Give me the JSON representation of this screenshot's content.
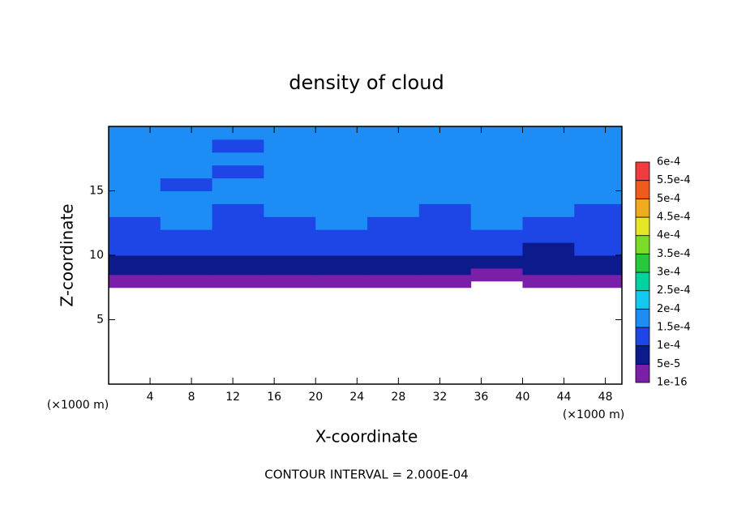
{
  "chart_data": {
    "type": "heatmap",
    "title": "density of cloud",
    "xlabel": "X-coordinate",
    "ylabel": "Z-coordinate",
    "x_unit": "(×1000 m)",
    "y_unit": "(×1000 m)",
    "annotation": "CONTOUR INTERVAL = 2.000E-04",
    "xlim": [
      0,
      49.6
    ],
    "ylim": [
      0,
      20
    ],
    "xticks": [
      4,
      8,
      12,
      16,
      20,
      24,
      28,
      32,
      36,
      40,
      44,
      48
    ],
    "yticks": [
      5,
      10,
      15
    ],
    "x_bins": [
      0,
      5,
      10,
      15,
      20,
      25,
      30,
      35,
      40,
      45,
      49.6
    ],
    "z_bins": [
      7.5,
      8,
      8.5,
      9,
      10,
      11,
      12,
      13,
      14,
      15,
      16,
      17,
      18,
      19,
      20
    ],
    "values": [
      [
        2e-05,
        2e-05,
        2e-05,
        2e-05,
        2e-05,
        2e-05,
        2e-05,
        null,
        2e-05,
        2e-05
      ],
      [
        3e-05,
        3e-05,
        3e-05,
        3e-05,
        3e-05,
        3e-05,
        3e-05,
        3e-05,
        3e-05,
        3e-05
      ],
      [
        6e-05,
        6e-05,
        6e-05,
        6e-05,
        6e-05,
        6e-05,
        6e-05,
        4e-05,
        6e-05,
        6e-05
      ],
      [
        8e-05,
        8e-05,
        8e-05,
        8e-05,
        8e-05,
        8e-05,
        8e-05,
        8e-05,
        8e-05,
        8e-05
      ],
      [
        0.00011,
        0.00011,
        0.00011,
        0.00011,
        0.00011,
        0.00011,
        0.00011,
        0.00011,
        9e-05,
        0.00011
      ],
      [
        0.00013,
        0.00013,
        0.00013,
        0.00013,
        0.00013,
        0.00013,
        0.00013,
        0.00013,
        0.00013,
        0.00013
      ],
      [
        0.00014,
        0.00016,
        0.00014,
        0.00014,
        0.00016,
        0.00014,
        0.00014,
        0.00016,
        0.00014,
        0.00014
      ],
      [
        0.00016,
        0.00016,
        0.00014,
        0.00016,
        0.00016,
        0.00016,
        0.00014,
        0.00016,
        0.00016,
        0.00014
      ],
      [
        0.00016,
        0.00016,
        0.00016,
        0.00016,
        0.00016,
        0.00016,
        0.00016,
        0.00016,
        0.00016,
        0.00016
      ],
      [
        0.00016,
        0.00014,
        0.00016,
        0.00016,
        0.00016,
        0.00016,
        0.00016,
        0.00016,
        0.00016,
        0.00016
      ],
      [
        0.00016,
        0.00016,
        0.00014,
        0.00016,
        0.00016,
        0.00016,
        0.00016,
        0.00016,
        0.00016,
        0.00016
      ],
      [
        0.00016,
        0.00016,
        0.00016,
        0.00016,
        0.00016,
        0.00016,
        0.00016,
        0.00016,
        0.00016,
        0.00016
      ],
      [
        0.00016,
        0.00016,
        0.00014,
        0.00016,
        0.00016,
        0.00016,
        0.00016,
        0.00016,
        0.00016,
        0.00016
      ],
      [
        0.00016,
        0.00016,
        0.00016,
        0.00016,
        0.00016,
        0.00016,
        0.00016,
        0.00016,
        0.00016,
        0.00016
      ]
    ],
    "levels": [
      {
        "value": 1e-16,
        "label": "1e-16"
      },
      {
        "value": 5e-05,
        "label": "5e-5"
      },
      {
        "value": 0.0001,
        "label": "1e-4"
      },
      {
        "value": 0.00015,
        "label": "1.5e-4"
      },
      {
        "value": 0.0002,
        "label": "2e-4"
      },
      {
        "value": 0.00025,
        "label": "2.5e-4"
      },
      {
        "value": 0.0003,
        "label": "3e-4"
      },
      {
        "value": 0.00035,
        "label": "3.5e-4"
      },
      {
        "value": 0.0004,
        "label": "4e-4"
      },
      {
        "value": 0.00045,
        "label": "4.5e-4"
      },
      {
        "value": 0.0005,
        "label": "5e-4"
      },
      {
        "value": 0.00055,
        "label": "5.5e-4"
      },
      {
        "value": 0.0006,
        "label": "6e-4"
      }
    ],
    "colors": [
      "#7a1fa8",
      "#0c1a8c",
      "#1e46e6",
      "#1e8cf5",
      "#14c8f0",
      "#00d2a0",
      "#28c83c",
      "#78dc28",
      "#e6e628",
      "#f0aa1e",
      "#f05a1e",
      "#f03c3c"
    ]
  }
}
